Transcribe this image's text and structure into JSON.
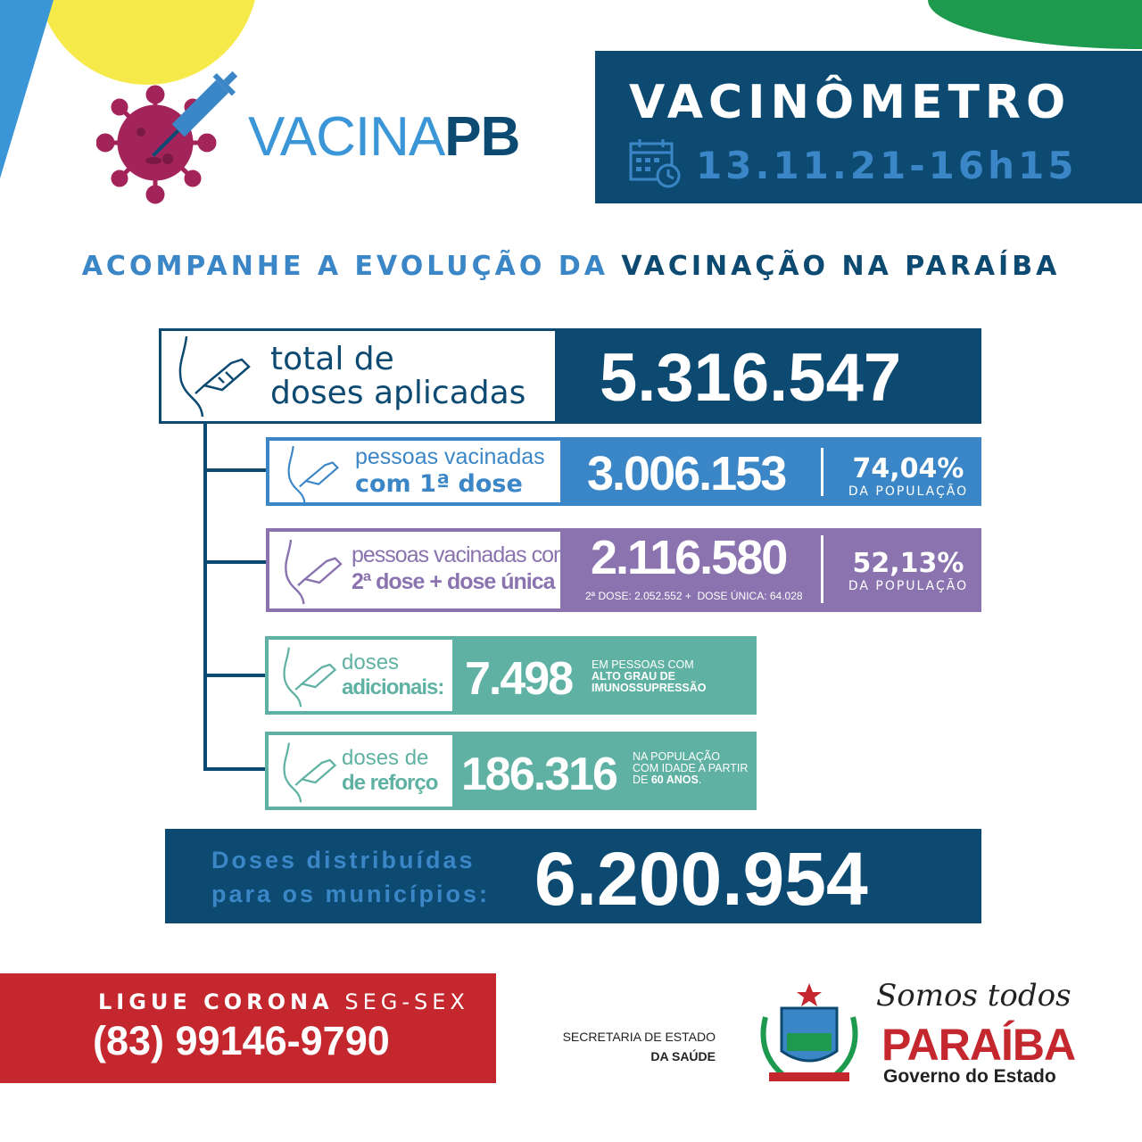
{
  "logo": {
    "text_light": "VACINA",
    "text_bold": "PB"
  },
  "header": {
    "title": "VACINÔMETRO",
    "date": "13.11.21-16h15",
    "icon": "calendar-clock-icon"
  },
  "subtitle": {
    "part1": "ACOMPANHE A EVOLUÇÃO DA",
    "part2": "VACINAÇÃO NA PARAÍBA"
  },
  "total": {
    "label_line1": "total de",
    "label_line2": "doses aplicadas",
    "value": "5.316.547"
  },
  "first_dose": {
    "label_line1": "pessoas vacinadas",
    "label_line2": "com 1ª dose",
    "value": "3.006.153",
    "percent": "74,04%",
    "percent_label": "DA POPULAÇÃO"
  },
  "second_dose": {
    "label_line1": "pessoas vacinadas com",
    "label_line2": "2ª dose + dose única",
    "value": "2.116.580",
    "breakdown": "2ª DOSE: 2.052.552 +  DOSE ÚNICA: 64.028",
    "percent": "52,13%",
    "percent_label": "DA POPULAÇÃO"
  },
  "additional": {
    "label_line1": "doses",
    "label_line2": "adicionais:",
    "value": "7.498",
    "note_line1": "EM PESSOAS COM",
    "note_line2": "ALTO GRAU DE",
    "note_line3": "IMUNOSSUPRESSÃO"
  },
  "booster": {
    "label_line1": "doses de",
    "label_line2": "de reforço",
    "value": "186.316",
    "note_line1": "NA POPULAÇÃO",
    "note_line2": "COM IDADE A PARTIR",
    "note_line3a": "DE ",
    "note_line3b": "60 ANOS",
    "note_line3c": "."
  },
  "distributed": {
    "label_line1": "Doses distribuídas",
    "label_line2": "para os municípios:",
    "value": "6.200.954"
  },
  "hotline": {
    "label_bold": "LIGUE CORONA",
    "label_light": "SEG-SEX",
    "phone": "(83) 99146-9790"
  },
  "footer": {
    "secretaria_line1": "SECRETARIA DE ESTADO",
    "secretaria_line2": "DA SAÚDE",
    "slogan": "Somos todos",
    "state": "PARAÍBA",
    "government": "Governo do Estado"
  },
  "colors": {
    "navy": "#0d4a72",
    "blue": "#3a86c6",
    "purple": "#8a73ae",
    "teal": "#5fb2a3",
    "red": "#c4272e",
    "yellow": "#f5ea4a",
    "green": "#1e9a4f",
    "virus": "#a3245a"
  }
}
